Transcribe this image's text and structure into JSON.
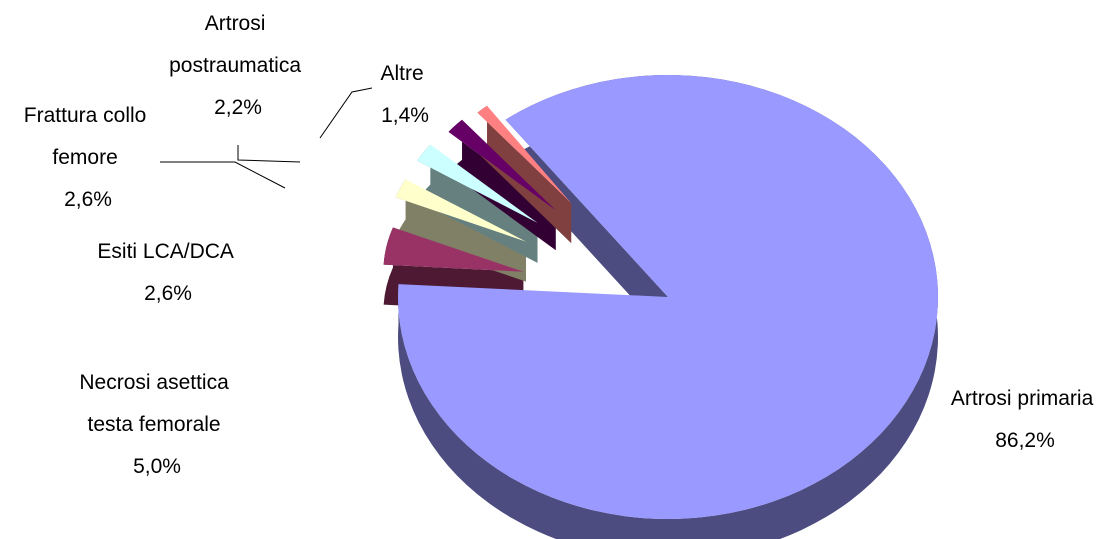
{
  "chart_data": {
    "type": "pie",
    "three_d": true,
    "exploded": true,
    "legend": "none",
    "slices": [
      {
        "label_lines": [
          "Artrosi primaria"
        ],
        "value_label": "86,2%",
        "value": 86.2,
        "color": "#9999ff",
        "side_color": "#4c4c80"
      },
      {
        "label_lines": [
          "Necrosi asettica",
          "testa femorale"
        ],
        "value_label": "5,0%",
        "value": 5.0,
        "color": "#993366",
        "side_color": "#4d1933"
      },
      {
        "label_lines": [
          "Esiti LCA/DCA"
        ],
        "value_label": "2,6%",
        "value": 2.6,
        "color": "#ffffcc",
        "side_color": "#808066"
      },
      {
        "label_lines": [
          "Frattura collo",
          "femore"
        ],
        "value_label": "2,6%",
        "value": 2.6,
        "color": "#ccffff",
        "side_color": "#668080"
      },
      {
        "label_lines": [
          "Artrosi",
          "postraumatica"
        ],
        "value_label": "2,2%",
        "value": 2.2,
        "color": "#660066",
        "side_color": "#330033"
      },
      {
        "label_lines": [
          "Altre"
        ],
        "value_label": "1,4%",
        "value": 1.4,
        "color": "#ff8080",
        "side_color": "#804040"
      }
    ]
  }
}
